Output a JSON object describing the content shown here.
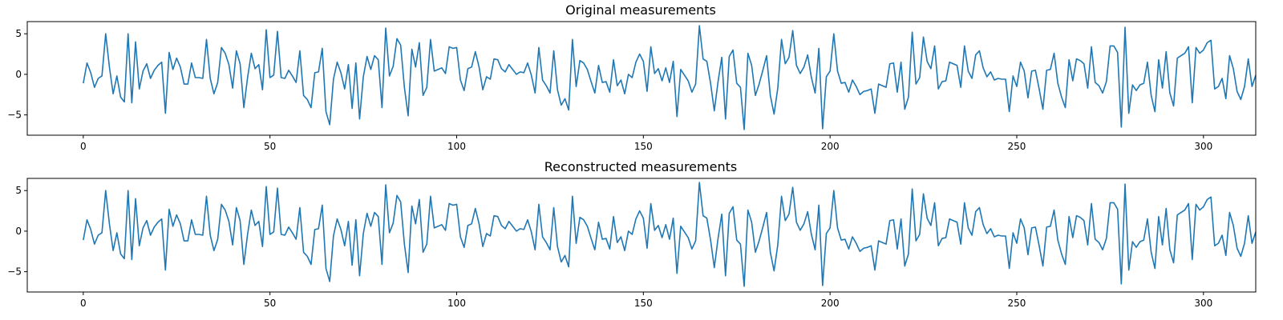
{
  "chart_data": [
    {
      "type": "line",
      "title": "Original measurements",
      "xlim": [
        -15,
        314
      ],
      "ylim": [
        -7.5,
        6.5
      ],
      "xticks": [
        0,
        50,
        100,
        150,
        200,
        250,
        300
      ],
      "yticks": [
        5,
        0,
        -5
      ],
      "grid": false,
      "series_color": "#1f77b4",
      "series": [
        {
          "values": [
            -1.1,
            1.4,
            0.2,
            -1.6,
            -0.5,
            -0.2,
            5.0,
            0.9,
            -2.4,
            -0.2,
            -2.8,
            -3.4,
            5.0,
            -3.5,
            4.0,
            -1.8,
            0.4,
            1.3,
            -0.5,
            0.5,
            1.1,
            1.5,
            -4.8,
            2.7,
            0.6,
            2.0,
            0.9,
            -1.2,
            -1.2,
            1.4,
            -0.4,
            -0.4,
            -0.5,
            4.3,
            -0.5,
            -2.4,
            -1.0,
            3.3,
            2.6,
            1.2,
            -1.7,
            2.9,
            1.3,
            -4.1,
            -0.4,
            2.6,
            0.7,
            1.2,
            -1.9,
            5.5,
            -0.4,
            -0.1,
            5.3,
            -0.4,
            -0.5,
            0.5,
            -0.2,
            -1.0,
            2.9,
            -2.6,
            -3.1,
            -4.1,
            0.2,
            0.3,
            3.2,
            -4.6,
            -6.2,
            -0.6,
            1.5,
            0.2,
            -1.8,
            1.2,
            -4.2,
            1.4,
            -5.5,
            -0.3,
            2.2,
            0.6,
            2.3,
            1.8,
            -4.1,
            5.7,
            -0.2,
            1.0,
            4.4,
            3.6,
            -1.6,
            -5.1,
            3.1,
            0.9,
            3.9,
            -2.6,
            -1.6,
            4.3,
            0.4,
            0.6,
            0.8,
            0.1,
            3.4,
            3.2,
            3.3,
            -0.7,
            -2.0,
            0.7,
            0.9,
            2.8,
            0.9,
            -1.9,
            -0.3,
            -0.6,
            1.9,
            1.8,
            0.7,
            0.3,
            1.2,
            0.6,
            0.0,
            0.3,
            0.2,
            1.4,
            -0.1,
            -2.3,
            3.3,
            -0.7,
            -1.4,
            -2.3,
            2.9,
            -1.9,
            -3.8,
            -3.0,
            -4.4,
            4.3,
            -1.5,
            1.7,
            1.4,
            0.6,
            -0.9,
            -2.3,
            1.1,
            -1.0,
            -0.9,
            -2.2,
            1.8,
            -1.4,
            -0.7,
            -2.4,
            0.0,
            -0.4,
            1.5,
            2.5,
            1.6,
            -2.1,
            3.4,
            0.1,
            0.7,
            -0.8,
            0.8,
            -1.0,
            1.6,
            -5.2,
            0.6,
            -0.1,
            -0.8,
            -2.2,
            -1.2,
            6.0,
            1.9,
            1.6,
            -1.1,
            -4.5,
            -0.9,
            2.1,
            -5.5,
            2.2,
            3.0,
            -1.1,
            -1.6,
            -6.8,
            2.6,
            1.1,
            -2.6,
            -1.2,
            0.5,
            2.3,
            -2.6,
            -4.9,
            -1.7,
            4.3,
            1.3,
            2.1,
            5.4,
            1.1,
            0.1,
            0.9,
            2.4,
            -0.4,
            -2.3,
            3.2,
            -6.7,
            -0.3,
            0.4,
            5.0,
            0.4,
            -1.1,
            -1.0,
            -2.2,
            -0.7,
            -1.5,
            -2.5,
            -2.1,
            -2.0,
            -1.8,
            -4.8,
            -1.2,
            -1.4,
            -1.6,
            1.3,
            1.4,
            -2.2,
            1.5,
            -4.3,
            -2.8,
            5.2,
            -1.2,
            -0.4,
            4.6,
            1.6,
            0.7,
            3.5,
            -1.8,
            -0.9,
            -0.8,
            1.5,
            1.3,
            1.1,
            -1.6,
            3.5,
            0.4,
            -0.5,
            2.4,
            2.9,
            0.8,
            -0.3,
            0.3,
            -0.7,
            -0.5,
            -0.6,
            -0.6,
            -4.6,
            -0.2,
            -1.5,
            1.5,
            0.4,
            -2.9,
            0.4,
            0.5,
            -1.8,
            -4.3,
            0.5,
            0.6,
            2.6,
            -1.1,
            -2.8,
            -4.1,
            1.8,
            -0.8,
            1.9,
            1.7,
            1.3,
            -1.7,
            3.4,
            -1.0,
            -1.4,
            -2.3,
            -0.9,
            3.5,
            3.5,
            2.7,
            -6.5,
            5.8,
            -4.8,
            -1.3,
            -2.0,
            -1.3,
            -1.1,
            1.5,
            -2.6,
            -4.6,
            1.8,
            -1.7,
            2.8,
            -2.3,
            -3.9,
            2.0,
            2.3,
            2.6,
            3.4,
            -3.5,
            3.3,
            2.6,
            3.0,
            3.9,
            4.2,
            -1.8,
            -1.5,
            -0.5,
            -3.0,
            2.3,
            0.7,
            -2.1,
            -3.1,
            -1.5,
            1.9,
            -1.5,
            -0.1
          ]
        }
      ]
    },
    {
      "type": "line",
      "title": "Reconstructed measurements",
      "xlim": [
        -15,
        314
      ],
      "ylim": [
        -7.5,
        6.5
      ],
      "xticks": [
        0,
        50,
        100,
        150,
        200,
        250,
        300
      ],
      "yticks": [
        5,
        0,
        -5
      ],
      "grid": false,
      "series_color": "#1f77b4",
      "series": [
        {
          "values": [
            -1.1,
            1.4,
            0.2,
            -1.6,
            -0.5,
            -0.2,
            5.0,
            0.9,
            -2.4,
            -0.2,
            -2.8,
            -3.4,
            5.0,
            -3.5,
            4.0,
            -1.8,
            0.4,
            1.3,
            -0.5,
            0.5,
            1.1,
            1.5,
            -4.8,
            2.7,
            0.6,
            2.0,
            0.9,
            -1.2,
            -1.2,
            1.4,
            -0.4,
            -0.4,
            -0.5,
            4.3,
            -0.5,
            -2.4,
            -1.0,
            3.3,
            2.6,
            1.2,
            -1.7,
            2.9,
            1.3,
            -4.1,
            -0.4,
            2.6,
            0.7,
            1.2,
            -1.9,
            5.5,
            -0.4,
            -0.1,
            5.3,
            -0.4,
            -0.5,
            0.5,
            -0.2,
            -1.0,
            2.9,
            -2.6,
            -3.1,
            -4.1,
            0.2,
            0.3,
            3.2,
            -4.6,
            -6.2,
            -0.6,
            1.5,
            0.2,
            -1.8,
            1.2,
            -4.2,
            1.4,
            -5.5,
            -0.3,
            2.2,
            0.6,
            2.3,
            1.8,
            -4.1,
            5.7,
            -0.2,
            1.0,
            4.4,
            3.6,
            -1.6,
            -5.1,
            3.1,
            0.9,
            3.9,
            -2.6,
            -1.6,
            4.3,
            0.4,
            0.6,
            0.8,
            0.1,
            3.4,
            3.2,
            3.3,
            -0.7,
            -2.0,
            0.7,
            0.9,
            2.8,
            0.9,
            -1.9,
            -0.3,
            -0.6,
            1.9,
            1.8,
            0.7,
            0.3,
            1.2,
            0.6,
            0.0,
            0.3,
            0.2,
            1.4,
            -0.1,
            -2.3,
            3.3,
            -0.7,
            -1.4,
            -2.3,
            2.9,
            -1.9,
            -3.8,
            -3.0,
            -4.4,
            4.3,
            -1.5,
            1.7,
            1.4,
            0.6,
            -0.9,
            -2.3,
            1.1,
            -1.0,
            -0.9,
            -2.2,
            1.8,
            -1.4,
            -0.7,
            -2.4,
            0.0,
            -0.4,
            1.5,
            2.5,
            1.6,
            -2.1,
            3.4,
            0.1,
            0.7,
            -0.8,
            0.8,
            -1.0,
            1.6,
            -5.2,
            0.6,
            -0.1,
            -0.8,
            -2.2,
            -1.2,
            6.0,
            1.9,
            1.6,
            -1.1,
            -4.5,
            -0.9,
            2.1,
            -5.5,
            2.2,
            3.0,
            -1.1,
            -1.6,
            -6.8,
            2.6,
            1.1,
            -2.6,
            -1.2,
            0.5,
            2.3,
            -2.6,
            -4.9,
            -1.7,
            4.3,
            1.3,
            2.1,
            5.4,
            1.1,
            0.1,
            0.9,
            2.4,
            -0.4,
            -2.3,
            3.2,
            -6.7,
            -0.3,
            0.4,
            5.0,
            0.4,
            -1.1,
            -1.0,
            -2.2,
            -0.7,
            -1.5,
            -2.5,
            -2.1,
            -2.0,
            -1.8,
            -4.8,
            -1.2,
            -1.4,
            -1.6,
            1.3,
            1.4,
            -2.2,
            1.5,
            -4.3,
            -2.8,
            5.2,
            -1.2,
            -0.4,
            4.6,
            1.6,
            0.7,
            3.5,
            -1.8,
            -0.9,
            -0.8,
            1.5,
            1.3,
            1.1,
            -1.6,
            3.5,
            0.4,
            -0.5,
            2.4,
            2.9,
            0.8,
            -0.3,
            0.3,
            -0.7,
            -0.5,
            -0.6,
            -0.6,
            -4.6,
            -0.2,
            -1.5,
            1.5,
            0.4,
            -2.9,
            0.4,
            0.5,
            -1.8,
            -4.3,
            0.5,
            0.6,
            2.6,
            -1.1,
            -2.8,
            -4.1,
            1.8,
            -0.8,
            1.9,
            1.7,
            1.3,
            -1.7,
            3.4,
            -1.0,
            -1.4,
            -2.3,
            -0.9,
            3.5,
            3.5,
            2.7,
            -6.5,
            5.8,
            -4.8,
            -1.3,
            -2.0,
            -1.3,
            -1.1,
            1.5,
            -2.6,
            -4.6,
            1.8,
            -1.7,
            2.8,
            -2.3,
            -3.9,
            2.0,
            2.3,
            2.6,
            3.4,
            -3.5,
            3.3,
            2.6,
            3.0,
            3.9,
            4.2,
            -1.8,
            -1.5,
            -0.5,
            -3.0,
            2.3,
            0.7,
            -2.1,
            -3.1,
            -1.5,
            1.9,
            -1.5,
            -0.1
          ]
        }
      ]
    }
  ]
}
